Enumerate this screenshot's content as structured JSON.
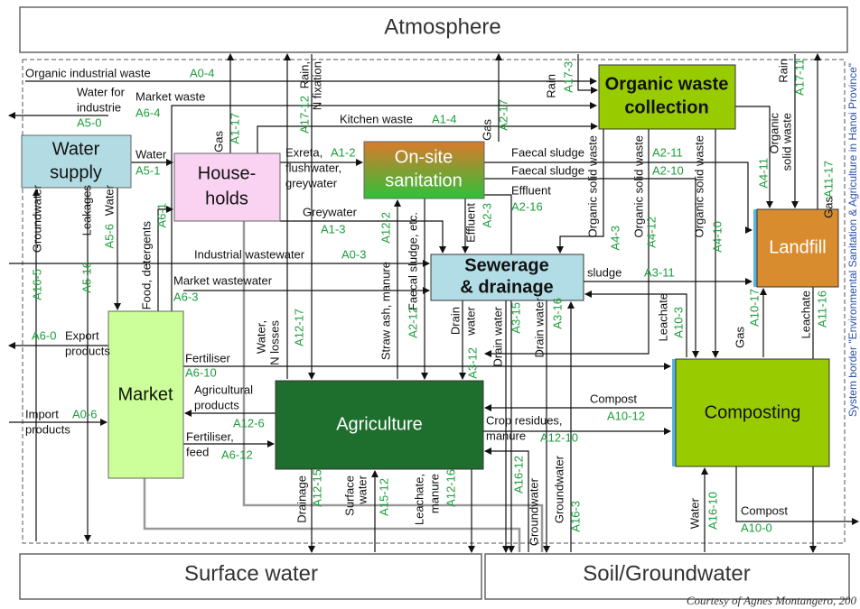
{
  "environments": {
    "atmosphere": "Atmosphere",
    "surface_water": "Surface water",
    "soil": "Soil/Groundwater"
  },
  "system_border": "System border \"Environmental Sanitation & Agriculture in Hanoi Province\"",
  "credit": "Courtesy of Agnes Montangero, 200",
  "nodes": [
    {
      "label": [
        "Water",
        "supply"
      ]
    },
    {
      "label": [
        "House-",
        "holds"
      ]
    },
    {
      "label": [
        "On-site",
        "sanitation"
      ]
    },
    {
      "label": [
        "Organic waste",
        "collection"
      ]
    },
    {
      "label": [
        "Sewerage",
        "& drainage"
      ]
    },
    {
      "label": [
        "Landfill"
      ]
    },
    {
      "label": [
        "Market"
      ]
    },
    {
      "label": [
        "Agriculture"
      ]
    },
    {
      "label": [
        "Composting"
      ]
    }
  ],
  "flows": [
    {
      "label": [
        "Organic industrial waste"
      ],
      "code": "A0-4"
    },
    {
      "label": [
        "Water for",
        "industrie"
      ],
      "code": "A5-0"
    },
    {
      "label": [
        "Market waste"
      ],
      "code": "A6-4"
    },
    {
      "label": [
        "Rain,",
        "N fixation"
      ],
      "code": "A17-12"
    },
    {
      "label": [
        "Rain"
      ],
      "code": "A17-3"
    },
    {
      "label": [
        "Rain"
      ],
      "code": "A17-11"
    },
    {
      "label": [
        "Kitchen waste"
      ],
      "code": "A1-4"
    },
    {
      "label": [
        "Gas"
      ],
      "code": "A1-17"
    },
    {
      "label": [
        "Gas"
      ],
      "code": "A2-17"
    },
    {
      "label": [
        "Water"
      ],
      "code": "A5-1"
    },
    {
      "label": [
        "Exreta,",
        "flushwater,",
        "greywater"
      ],
      "code": "A1-2"
    },
    {
      "label": [
        "Faecal sludge"
      ],
      "code": "A2-11"
    },
    {
      "label": [
        "Faecal sludge"
      ],
      "code": "A2-10"
    },
    {
      "label": [
        "Effluent"
      ],
      "code": "A2-16"
    },
    {
      "label": [
        "Organic",
        "solid waste"
      ],
      "code": "A4-11"
    },
    {
      "label": [
        "Gas"
      ],
      "code": "A11-17"
    },
    {
      "label": [
        "Groundwater"
      ],
      "code": "A16-5"
    },
    {
      "label": [
        "Leakages"
      ],
      "code": "A5-16"
    },
    {
      "label": [
        "Water"
      ],
      "code": "A5-6"
    },
    {
      "label": [
        "Food, detergents"
      ],
      "code": "A6-1"
    },
    {
      "label": [
        "Greywater"
      ],
      "code": "A1-3"
    },
    {
      "label": [
        "Industrial wastewater"
      ],
      "code": "A0-3"
    },
    {
      "label": [
        "Faecal sludge, etc."
      ],
      "code": "A2-12"
    },
    {
      "label": [
        "Effluent"
      ],
      "code": "A2-3"
    },
    {
      "label": [
        "Organic solid waste"
      ],
      "code": "A4-3"
    },
    {
      "label": [
        "Organic solid waste"
      ],
      "code": "A4-12"
    },
    {
      "label": [
        "Organic solid waste"
      ],
      "code": "A4-10"
    },
    {
      "label": [
        "Market wastewater"
      ],
      "code": "A6-3"
    },
    {
      "label": [
        "sludge"
      ],
      "code": "A3-11"
    },
    {
      "label": [
        "Straw ash, manure"
      ],
      "code": "A12-2"
    },
    {
      "label": [
        "Export",
        "products"
      ],
      "code": "A6-0"
    },
    {
      "label": [
        "Water,",
        "N losses"
      ],
      "code": "A12-17"
    },
    {
      "label": [
        "Drain",
        "water"
      ],
      "code": "A3-12"
    },
    {
      "label": [
        "Drain water"
      ],
      "code": "A3-15"
    },
    {
      "label": [
        "Drain water"
      ],
      "code": "A3-16"
    },
    {
      "label": [
        "Leachate"
      ],
      "code": "A10-3"
    },
    {
      "label": [
        "Gas"
      ],
      "code": "A10-17"
    },
    {
      "label": [
        "Leachate"
      ],
      "code": "A11-16"
    },
    {
      "label": [
        "Fertiliser"
      ],
      "code": "A6-10"
    },
    {
      "label": [
        "Agricultural",
        "products"
      ],
      "code": "A12-6"
    },
    {
      "label": [
        "Compost"
      ],
      "code": "A10-12"
    },
    {
      "label": [
        "Import",
        "products"
      ],
      "code": "A0-6"
    },
    {
      "label": [
        "Crop residues,",
        "manure"
      ],
      "code": "A12-10"
    },
    {
      "label": [
        "Fertiliser,",
        "feed"
      ],
      "code": "A6-12"
    },
    {
      "label": [
        "Drainage"
      ],
      "code": "A12-15"
    },
    {
      "label": [
        "Surface",
        "water"
      ],
      "code": "A15-12"
    },
    {
      "label": [
        "Leachate,",
        "manure"
      ],
      "code": "A12-16"
    },
    {
      "label": [
        "Groundwater"
      ],
      "code": "A16-12"
    },
    {
      "label": [
        "Groundwater"
      ],
      "code": "A16-3"
    },
    {
      "label": [
        "Water"
      ],
      "code": "A16-10"
    },
    {
      "label": [
        "Compost"
      ],
      "code": "A10-0"
    }
  ]
}
